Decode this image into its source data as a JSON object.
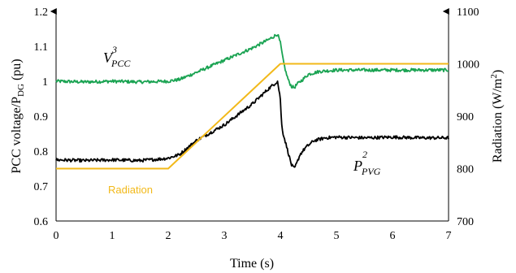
{
  "chart_data": {
    "type": "line",
    "title": "",
    "xlabel": "Time (s)",
    "ylabel_left": {
      "main": "PCC voltage/P",
      "sub": "DG",
      "suffix": " (pu)"
    },
    "ylabel_right": {
      "main": "Radiation (W/m",
      "sup": "2",
      "suffix": ")"
    },
    "xlim": [
      0,
      7
    ],
    "ylim_left": [
      0.6,
      1.2
    ],
    "ylim_right": [
      700,
      1100
    ],
    "grid": false,
    "x_ticks": [
      "0",
      "1",
      "2",
      "3",
      "4",
      "5",
      "6",
      "7"
    ],
    "y_left_ticks": [
      "0.6",
      "0.7",
      "0.8",
      "0.9",
      "1",
      "1.1",
      "1.2"
    ],
    "y_right_ticks": [
      "700",
      "800",
      "900",
      "1000",
      "1100"
    ],
    "colors": {
      "voltage": "#1aa352",
      "power": "#000000",
      "radiation": "#f2b91a"
    },
    "series": [
      {
        "name": "V_PCC",
        "axis": "left",
        "color": "#1aa352",
        "x": [
          0,
          0.5,
          1.0,
          1.5,
          2.0,
          2.2,
          2.5,
          3.0,
          3.5,
          3.8,
          3.95,
          4.0,
          4.05,
          4.1,
          4.15,
          4.2,
          4.25,
          4.3,
          4.4,
          4.5,
          4.7,
          5.0,
          5.5,
          6.0,
          6.5,
          7.0
        ],
        "values": [
          1.0,
          0.998,
          1.0,
          0.998,
          1.0,
          1.005,
          1.025,
          1.06,
          1.095,
          1.12,
          1.135,
          1.11,
          1.06,
          1.025,
          1.0,
          0.985,
          0.982,
          0.992,
          1.005,
          1.02,
          1.028,
          1.032,
          1.032,
          1.032,
          1.032,
          1.032
        ]
      },
      {
        "name": "P_PVG",
        "axis": "left",
        "color": "#000000",
        "x": [
          0,
          0.5,
          1.0,
          1.5,
          1.9,
          2.0,
          2.2,
          2.5,
          3.0,
          3.5,
          3.8,
          3.95,
          4.0,
          4.02,
          4.05,
          4.1,
          4.15,
          4.2,
          4.25,
          4.3,
          4.35,
          4.45,
          4.6,
          4.8,
          5.0,
          5.5,
          6.0,
          6.5,
          7.0
        ],
        "values": [
          0.775,
          0.773,
          0.775,
          0.773,
          0.778,
          0.78,
          0.79,
          0.83,
          0.875,
          0.935,
          0.98,
          1.0,
          0.95,
          0.88,
          0.85,
          0.82,
          0.79,
          0.76,
          0.75,
          0.768,
          0.79,
          0.81,
          0.83,
          0.838,
          0.84,
          0.838,
          0.84,
          0.838,
          0.838
        ]
      },
      {
        "name": "Radiation",
        "axis": "right",
        "color": "#f2b91a",
        "x": [
          0,
          2.0,
          4.0,
          7.0
        ],
        "values": [
          800,
          800,
          1000,
          1000
        ]
      }
    ],
    "annotations": {
      "voltage": {
        "base": "V",
        "sup": "3",
        "sub": "PCC"
      },
      "power": {
        "base": "P",
        "sup": "2",
        "sub": "PVG"
      },
      "radiation": {
        "text": "Radiation"
      }
    }
  }
}
